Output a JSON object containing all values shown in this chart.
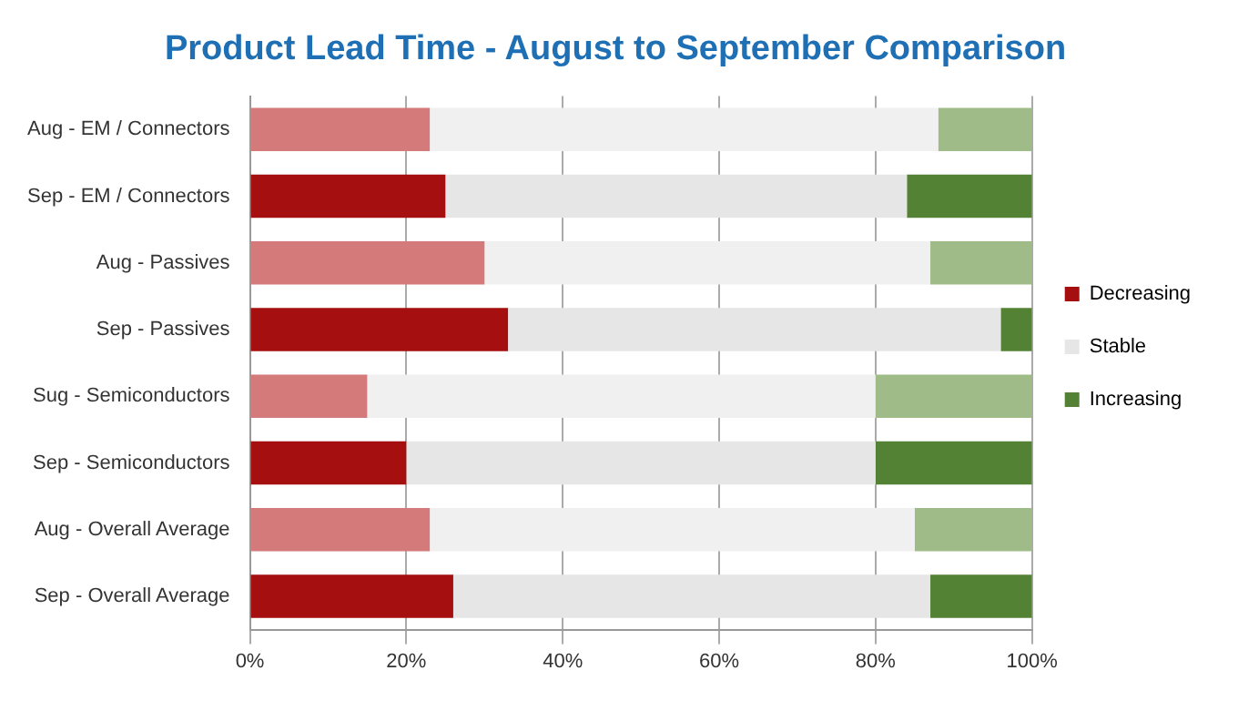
{
  "chart_data": {
    "type": "bar",
    "orientation": "horizontal",
    "stacked": true,
    "title": "Product Lead Time - August to September Comparison",
    "categories": [
      "Aug - EM / Connectors",
      "Sep - EM / Connectors",
      "Aug - Passives",
      "Sep - Passives",
      "Sug - Semiconductors",
      "Sep - Semiconductors",
      "Aug - Overall Average",
      "Sep - Overall Average"
    ],
    "series": [
      {
        "name": "Decreasing",
        "color": "#a50f0f",
        "colors": [
          "#d47a7a",
          "#a50f0f",
          "#d47a7a",
          "#a50f0f",
          "#d47a7a",
          "#a50f0f",
          "#d47a7a",
          "#a50f0f"
        ],
        "values": [
          23,
          25,
          30,
          33,
          15,
          20,
          23,
          26
        ]
      },
      {
        "name": "Stable",
        "color": "#e6e6e6",
        "colors": [
          "#f0f0f0",
          "#e6e6e6",
          "#f0f0f0",
          "#e6e6e6",
          "#f0f0f0",
          "#e6e6e6",
          "#f0f0f0",
          "#e6e6e6"
        ],
        "values": [
          65,
          59,
          57,
          63,
          65,
          60,
          62,
          61
        ]
      },
      {
        "name": "Increasing",
        "color": "#548235",
        "colors": [
          "#9fbb88",
          "#548235",
          "#9fbb88",
          "#548235",
          "#9fbb88",
          "#548235",
          "#9fbb88",
          "#548235"
        ],
        "values": [
          12,
          16,
          13,
          4,
          20,
          20,
          15,
          13
        ]
      }
    ],
    "xlim": [
      0,
      100
    ],
    "xticks": [
      {
        "value": 0,
        "label": "0%"
      },
      {
        "value": 20,
        "label": "20%"
      },
      {
        "value": 40,
        "label": "40%"
      },
      {
        "value": 60,
        "label": "60%"
      },
      {
        "value": 80,
        "label": "80%"
      },
      {
        "value": 100,
        "label": "100%"
      }
    ],
    "grid": "x",
    "legend": "right"
  }
}
